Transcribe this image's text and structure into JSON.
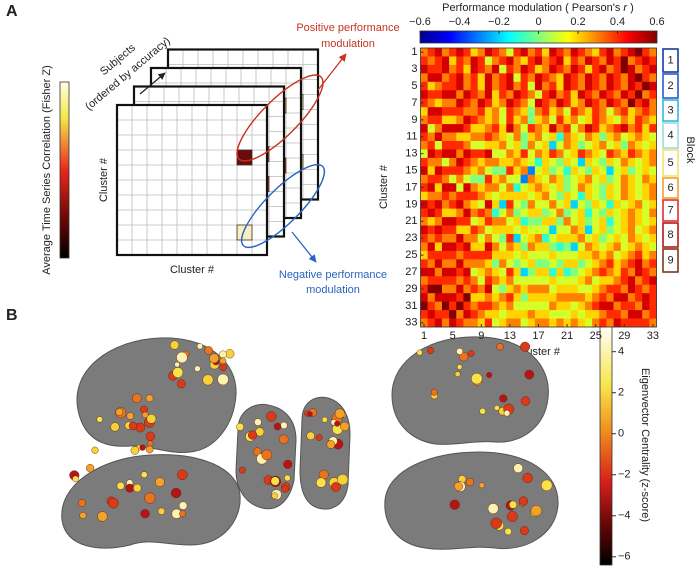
{
  "panel_a": {
    "label": "A",
    "schematic": {
      "colorbar_label": "Average Time Series Correlation (Fisher Z)",
      "subjects_line1": "Subjects",
      "subjects_line2": "(ordered by accuracy)",
      "x_label": "Cluster #",
      "y_label": "Cluster #",
      "positive_line1": "Positive performance",
      "positive_line2": "modulation",
      "negative_line1": "Negative performance",
      "negative_line2": "modulation"
    },
    "heatmap": {
      "title_prefix": "Performance modulation ( Pearson's ",
      "title_var": "r",
      "title_suffix": " )",
      "x_label": "Cluster #",
      "y_label": "Cluster #",
      "block_label": "Block",
      "clim": [
        -0.6,
        0.6
      ],
      "colorbar_ticks": [
        {
          "value": -0.6,
          "label": "−0.6"
        },
        {
          "value": -0.4,
          "label": "−0.4"
        },
        {
          "value": -0.2,
          "label": "−0.2"
        },
        0,
        0.2,
        0.4,
        0.6
      ],
      "xticks": [
        1,
        5,
        9,
        13,
        17,
        21,
        25,
        29,
        33
      ],
      "yticks": [
        1,
        3,
        5,
        7,
        9,
        11,
        13,
        15,
        17,
        19,
        21,
        23,
        25,
        27,
        29,
        31,
        33
      ],
      "blocks": [
        {
          "label": "1",
          "color": "#1b3a9a"
        },
        {
          "label": "2",
          "color": "#2a5cc8"
        },
        {
          "label": "3",
          "color": "#35b8d8"
        },
        {
          "label": "4",
          "color": "#9fd8e0"
        },
        {
          "label": "5",
          "color": "#f2e36a"
        },
        {
          "label": "6",
          "color": "#f0a030"
        },
        {
          "label": "7",
          "color": "#e0302a"
        },
        {
          "label": "8",
          "color": "#b01a1a"
        },
        {
          "label": "9",
          "color": "#7a3a1a"
        }
      ],
      "upper_triangle": [
        [
          0.3,
          0.4,
          0.5,
          0.3,
          0.4,
          0.5,
          0.4,
          0.2,
          0.3,
          0.5,
          0.4,
          0.3,
          0.1,
          0.4,
          0.5,
          0.3,
          0.4,
          0.2,
          0.5,
          0.4,
          0.3,
          0.5,
          0.4,
          0.3,
          0.2,
          0.4,
          0.5,
          0.3,
          0.4,
          0.5,
          0.6,
          0.4,
          0.3
        ],
        [
          0.3,
          0.4,
          0.5,
          0.2,
          0.4,
          0.3,
          0.5,
          0.4,
          0.1,
          0.3,
          0.4,
          0.5,
          0.3,
          0.2,
          0.4,
          0.5,
          0.3,
          0.4,
          0.5,
          0.2,
          0.4,
          0.3,
          0.5,
          0.4,
          0.3,
          0.5,
          0.4,
          0.6,
          0.3,
          0.4,
          0.5,
          0.4
        ],
        [
          0.4,
          0.5,
          0.3,
          0.4,
          0.2,
          0.5,
          0.4,
          0.3,
          0.5,
          0.1,
          0.4,
          0.3,
          0.5,
          0.4,
          0.2,
          0.3,
          0.5,
          0.4,
          0.3,
          0.5,
          0.4,
          0.2,
          0.4,
          0.5,
          0.3,
          0.4,
          0.6,
          0.5,
          0.3,
          0.4,
          0.5
        ],
        [
          0.3,
          0.4,
          0.5,
          0.3,
          0.4,
          0.2,
          0.5,
          0.3,
          0.4,
          0.5,
          0.1,
          0.4,
          0.3,
          0.5,
          0.4,
          0.3,
          0.2,
          0.5,
          0.4,
          0.3,
          0.5,
          0.4,
          0.3,
          0.5,
          0.4,
          0.3,
          0.5,
          0.6,
          0.4,
          0.3
        ],
        [
          0.4,
          0.5,
          0.3,
          0.4,
          0.2,
          0.5,
          0.3,
          0.4,
          0.5,
          0.3,
          0.4,
          0.1,
          0.5,
          0.3,
          0.4,
          0.2,
          0.5,
          0.4,
          0.3,
          0.5,
          0.4,
          0.3,
          0.5,
          0.4,
          0.3,
          0.5,
          0.4,
          0.6,
          0.5
        ],
        [
          0.3,
          0.5,
          0.4,
          0.3,
          0.5,
          0.2,
          0.4,
          0.3,
          0.5,
          0.4,
          0.3,
          0.1,
          0.4,
          0.5,
          0.3,
          0.4,
          0.2,
          0.5,
          0.4,
          0.3,
          0.5,
          0.4,
          0.3,
          0.5,
          0.4,
          0.6,
          0.3,
          0.4
        ],
        [
          0.4,
          0.3,
          0.5,
          0.4,
          0.2,
          0.3,
          0.5,
          0.4,
          0.3,
          0.1,
          0.5,
          0.4,
          0.3,
          0.5,
          0.4,
          0.2,
          0.3,
          0.5,
          0.4,
          0.3,
          0.5,
          0.4,
          0.3,
          0.6,
          0.4,
          0.5,
          0.3
        ],
        [
          0.3,
          0.4,
          0.2,
          0.3,
          0.1,
          0.4,
          0.3,
          0.2,
          0,
          0.3,
          0.4,
          0.2,
          0.3,
          0.1,
          0.4,
          0.3,
          0.2,
          0.4,
          0.3,
          0.1,
          0.3,
          0.4,
          0.2,
          0.3,
          0.4,
          0.3
        ],
        [
          0.3,
          0.2,
          0.3,
          0.1,
          0.4,
          0.2,
          0.3,
          0,
          0.2,
          0.3,
          0.1,
          0.4,
          0.2,
          0.3,
          0.1,
          0.2,
          0.4,
          0.3,
          0.2,
          0.1,
          0.3,
          0.2,
          0.4,
          0.3,
          0.2
        ],
        [
          0.3,
          0.4,
          0.2,
          0.5,
          0.3,
          0.1,
          0.4,
          0.3,
          0.2,
          0.5,
          0.3,
          0.4,
          0.1,
          0.3,
          0.5,
          0.4,
          0.2,
          0.3,
          0.4,
          0.5,
          0.3,
          0.4,
          0.2,
          0.4
        ],
        [
          0.3,
          0.2,
          0.1,
          0.3,
          0,
          0.2,
          0.3,
          0.1,
          0.2,
          -0.1,
          0.3,
          0.2,
          0.1,
          0.3,
          0.2,
          0,
          0.2,
          0.3,
          0.1,
          0.2,
          0.3,
          0.2,
          0.1
        ],
        [
          0.3,
          0.1,
          0.2,
          0,
          0.3,
          0.1,
          0.2,
          -0.2,
          0.1,
          0.3,
          0.2,
          0,
          0.1,
          0.2,
          0.3,
          0.1,
          0.2,
          0,
          0.3,
          0.2,
          0.1,
          0.2
        ],
        [
          0.3,
          0.2,
          0.4,
          0.1,
          0.3,
          0.2,
          0.4,
          0.3,
          0.1,
          0.2,
          0.4,
          0.3,
          0.2,
          0.1,
          0.4,
          0.3,
          0.2,
          0.4,
          0.3,
          0.2,
          0.3
        ],
        [
          0.3,
          0.2,
          0.1,
          -0.1,
          0.2,
          0.1,
          0,
          0.2,
          0.1,
          -0.2,
          0.2,
          0.1,
          0,
          0.2,
          0.1,
          0.3,
          0.2,
          0.1,
          0.2,
          0.3
        ],
        [
          0.3,
          -0.3,
          0.1,
          0.2,
          0,
          0.1,
          -0.1,
          0.2,
          0.1,
          0,
          0.2,
          0.1,
          -0.2,
          0.1,
          0.2,
          0,
          0.1,
          0.2,
          0.1
        ],
        [
          0.3,
          0.2,
          0.1,
          0.3,
          0.2,
          0,
          0.1,
          0.2,
          0.3,
          0.1,
          0.2,
          0,
          0.1,
          0.3,
          0.2,
          0.1,
          0.3,
          0.2
        ],
        [
          0.3,
          0.2,
          0.1,
          0.2,
          0,
          0.1,
          0.3,
          0.2,
          0.1,
          0,
          0.2,
          0.1,
          0.3,
          0.2,
          0.1,
          0.2,
          0.3
        ],
        [
          0.3,
          0.1,
          0,
          0.2,
          0.1,
          -0.1,
          0.2,
          0.1,
          0,
          0.2,
          0.1,
          0.3,
          0.2,
          0.1,
          0.2,
          0.3
        ],
        [
          0.3,
          0.1,
          0.2,
          -0.2,
          0.1,
          0,
          0.2,
          0.1,
          -0.1,
          0.2,
          0.1,
          0.2,
          0.3,
          0.1,
          0.2
        ],
        [
          0.3,
          0,
          0.1,
          0.2,
          -0.1,
          0.1,
          0,
          0.2,
          0.1,
          0.2,
          0.3,
          0.2,
          0.1,
          0.3
        ],
        [
          0.3,
          0.1,
          0.2,
          0,
          0.1,
          0.2,
          -0.1,
          0.1,
          0.2,
          0.3,
          0.2,
          0.1,
          0.2
        ],
        [
          0.3,
          0.2,
          -0.2,
          0.1,
          0.2,
          0,
          0.1,
          0.2,
          0.3,
          0.1,
          0.2,
          0.3
        ],
        [
          0.3,
          0.1,
          0.2,
          0,
          0.1,
          0.2,
          0.1,
          0.3,
          0.2,
          0.1,
          0.2
        ],
        [
          0.3,
          0.2,
          0.1,
          0.2,
          0.3,
          0.1,
          0.2,
          0.3,
          0.2,
          0.1
        ],
        [
          0.3,
          0.2,
          0.3,
          0.1,
          0.2,
          0.3,
          0.4,
          0.2,
          0.3
        ],
        [
          0.3,
          0.4,
          0.2,
          0.3,
          0.4,
          0.5,
          0.3,
          0.4
        ],
        [
          0.3,
          0.2,
          0.4,
          0.3,
          0.5,
          0.4,
          0.3
        ],
        [
          0.3,
          0.4,
          0.5,
          0.3,
          0.4,
          0.5
        ],
        [
          0.3,
          0.5,
          0.4,
          0.3,
          0.4
        ],
        [
          0.3,
          0.4,
          0.5,
          0.4
        ],
        [
          0.3,
          0.5,
          0.4
        ],
        [
          0.3,
          0.4
        ],
        [
          0.3
        ]
      ]
    }
  },
  "panel_b": {
    "label": "B",
    "colorbar_label": "Eigenvector Centrality (z-score)",
    "clim": [
      -6.4,
      5.3
    ],
    "colorbar_ticks": [
      4,
      2,
      0,
      {
        "value": -2,
        "label": "−2"
      },
      {
        "value": -4,
        "label": "−4"
      },
      {
        "value": -6,
        "label": "−6"
      }
    ]
  }
}
